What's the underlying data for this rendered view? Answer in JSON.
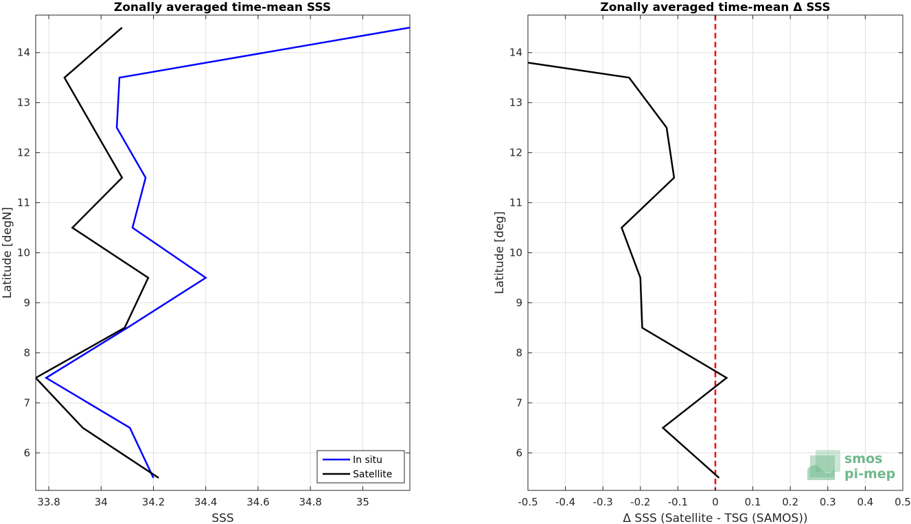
{
  "chart_data": [
    {
      "type": "line",
      "title": "Zonally averaged time-mean SSS",
      "xlabel": "SSS",
      "ylabel": "Latitude [degN]",
      "xlim": [
        33.75,
        35.18
      ],
      "ylim": [
        5.25,
        14.75
      ],
      "xticks": [
        33.8,
        34,
        34.2,
        34.4,
        34.6,
        34.8,
        35
      ],
      "xtick_labels": [
        "33.8",
        "34",
        "34.2",
        "34.4",
        "34.6",
        "34.8",
        "35"
      ],
      "yticks": [
        6,
        7,
        8,
        9,
        10,
        11,
        12,
        13,
        14
      ],
      "ytick_labels": [
        "6",
        "7",
        "8",
        "9",
        "10",
        "11",
        "12",
        "13",
        "14"
      ],
      "grid": true,
      "legend_position": "bottom-right",
      "y": [
        5.5,
        6.5,
        7.5,
        8.5,
        9.5,
        10.5,
        11.5,
        12.5,
        13.5,
        14.5
      ],
      "series": [
        {
          "name": "In situ",
          "color": "#0000ff",
          "x": [
            34.2,
            34.11,
            33.79,
            34.1,
            34.4,
            34.12,
            34.17,
            34.06,
            34.07,
            35.18
          ],
          "y": [
            5.5,
            6.5,
            7.5,
            8.5,
            9.5,
            10.5,
            11.5,
            12.5,
            13.5,
            14.5
          ]
        },
        {
          "name": "Satellite",
          "color": "#000000",
          "x": [
            34.22,
            33.93,
            33.75,
            34.09,
            34.18,
            33.89,
            34.08,
            33.97,
            33.86,
            34.08
          ],
          "y": [
            5.5,
            6.5,
            7.5,
            8.5,
            9.5,
            10.5,
            11.5,
            12.5,
            13.5,
            14.5
          ]
        }
      ]
    },
    {
      "type": "line",
      "title": "Zonally averaged time-mean Δ SSS",
      "xlabel": "Δ SSS (Satellite - TSG (SAMOS))",
      "ylabel": "Latitude [deg]",
      "xlim": [
        -0.5,
        0.5
      ],
      "ylim": [
        5.25,
        14.75
      ],
      "xticks": [
        -0.5,
        -0.4,
        -0.3,
        -0.2,
        -0.1,
        0,
        0.1,
        0.2,
        0.3,
        0.4,
        0.5
      ],
      "xtick_labels": [
        "-0.5",
        "-0.4",
        "-0.3",
        "-0.2",
        "-0.1",
        "0",
        "0.1",
        "0.2",
        "0.3",
        "0.4",
        "0.5"
      ],
      "yticks": [
        6,
        7,
        8,
        9,
        10,
        11,
        12,
        13,
        14
      ],
      "ytick_labels": [
        "6",
        "7",
        "8",
        "9",
        "10",
        "11",
        "12",
        "13",
        "14"
      ],
      "grid": true,
      "reference_line": {
        "x": 0,
        "color": "#ff0000",
        "style": "dashed"
      },
      "series": [
        {
          "color": "#000000",
          "x": [
            0.01,
            -0.14,
            0.03,
            -0.195,
            -0.2,
            -0.25,
            -0.11,
            -0.13,
            -0.23,
            -0.5
          ],
          "y": [
            5.5,
            6.5,
            7.5,
            8.5,
            9.5,
            10.5,
            11.5,
            12.5,
            13.5,
            13.8
          ]
        }
      ]
    }
  ],
  "logo": {
    "line1": "smos",
    "line2": "pi-mep",
    "color": "#6fb88a"
  }
}
